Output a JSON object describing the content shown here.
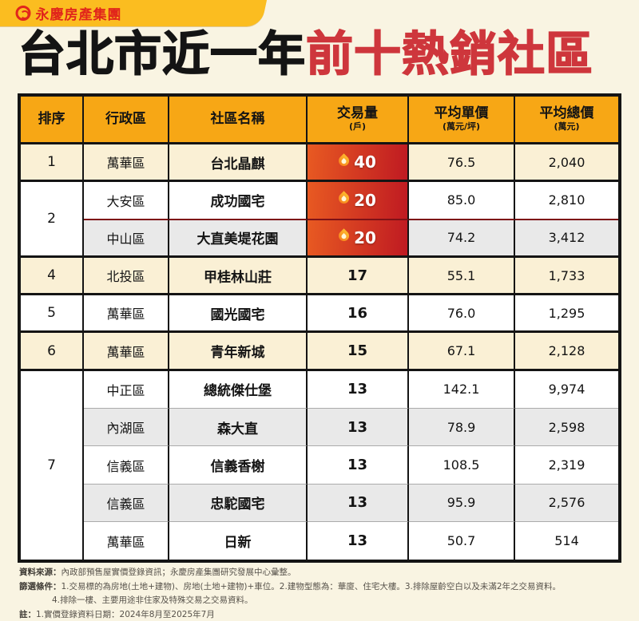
{
  "brand": {
    "logo_text": "永慶房產集團"
  },
  "title": {
    "black": "台北市近一年",
    "red": "前十熱銷社區"
  },
  "colors": {
    "background": "#F9F4E2",
    "tab_yellow": "#FBBD20",
    "logo_red": "#E1251B",
    "title_red": "#CE363C",
    "header_orange": "#F7A715",
    "row_cream": "#FAF0D5",
    "row_gray": "#E9E9E9",
    "hot_gradient_left": "#E85A22",
    "hot_gradient_right": "#BF1A22",
    "border_black": "#141414"
  },
  "table": {
    "headers": [
      {
        "label": "排序",
        "sub": ""
      },
      {
        "label": "行政區",
        "sub": ""
      },
      {
        "label": "社區名稱",
        "sub": ""
      },
      {
        "label": "交易量",
        "sub": "(戶)"
      },
      {
        "label": "平均單價",
        "sub": "(萬元/坪)"
      },
      {
        "label": "平均總價",
        "sub": "(萬元)"
      }
    ],
    "groups": [
      {
        "rank": "1",
        "rank_bg": "cream",
        "rows": [
          {
            "district": "萬華區",
            "community": "台北晶麒",
            "volume": "40",
            "hot": true,
            "unit_price": "76.5",
            "total_price": "2,040",
            "bg": "cream"
          }
        ]
      },
      {
        "rank": "2",
        "rank_bg": "white",
        "rows": [
          {
            "district": "大安區",
            "community": "成功國宅",
            "volume": "20",
            "hot": true,
            "unit_price": "85.0",
            "total_price": "2,810",
            "bg": "white"
          },
          {
            "district": "中山區",
            "community": "大直美堤花園",
            "volume": "20",
            "hot": true,
            "unit_price": "74.2",
            "total_price": "3,412",
            "bg": "gray"
          }
        ]
      },
      {
        "rank": "4",
        "rank_bg": "cream",
        "rows": [
          {
            "district": "北投區",
            "community": "甲桂林山莊",
            "volume": "17",
            "hot": false,
            "unit_price": "55.1",
            "total_price": "1,733",
            "bg": "cream"
          }
        ]
      },
      {
        "rank": "5",
        "rank_bg": "white",
        "rows": [
          {
            "district": "萬華區",
            "community": "國光國宅",
            "volume": "16",
            "hot": false,
            "unit_price": "76.0",
            "total_price": "1,295",
            "bg": "white"
          }
        ]
      },
      {
        "rank": "6",
        "rank_bg": "cream",
        "rows": [
          {
            "district": "萬華區",
            "community": "青年新城",
            "volume": "15",
            "hot": false,
            "unit_price": "67.1",
            "total_price": "2,128",
            "bg": "cream"
          }
        ]
      },
      {
        "rank": "7",
        "rank_bg": "white",
        "rows": [
          {
            "district": "中正區",
            "community": "總統傑仕堡",
            "volume": "13",
            "hot": false,
            "unit_price": "142.1",
            "total_price": "9,974",
            "bg": "white"
          },
          {
            "district": "內湖區",
            "community": "森大直",
            "volume": "13",
            "hot": false,
            "unit_price": "78.9",
            "total_price": "2,598",
            "bg": "gray"
          },
          {
            "district": "信義區",
            "community": "信義香榭",
            "volume": "13",
            "hot": false,
            "unit_price": "108.5",
            "total_price": "2,319",
            "bg": "white"
          },
          {
            "district": "信義區",
            "community": "忠駝國宅",
            "volume": "13",
            "hot": false,
            "unit_price": "95.9",
            "total_price": "2,576",
            "bg": "gray"
          },
          {
            "district": "萬華區",
            "community": "日新",
            "volume": "13",
            "hot": false,
            "unit_price": "50.7",
            "total_price": "514",
            "bg": "white"
          }
        ]
      }
    ]
  },
  "chart_data": {
    "type": "table",
    "title": "台北市近一年前十熱銷社區",
    "columns": [
      "排序",
      "行政區",
      "社區名稱",
      "交易量(戶)",
      "平均單價(萬元/坪)",
      "平均總價(萬元)"
    ],
    "rows": [
      [
        "1",
        "萬華區",
        "台北晶麒",
        40,
        76.5,
        2040
      ],
      [
        "2",
        "大安區",
        "成功國宅",
        20,
        85.0,
        2810
      ],
      [
        "2",
        "中山區",
        "大直美堤花園",
        20,
        74.2,
        3412
      ],
      [
        "4",
        "北投區",
        "甲桂林山莊",
        17,
        55.1,
        1733
      ],
      [
        "5",
        "萬華區",
        "國光國宅",
        16,
        76.0,
        1295
      ],
      [
        "6",
        "萬華區",
        "青年新城",
        15,
        67.1,
        2128
      ],
      [
        "7",
        "中正區",
        "總統傑仕堡",
        13,
        142.1,
        9974
      ],
      [
        "7",
        "內湖區",
        "森大直",
        13,
        78.9,
        2598
      ],
      [
        "7",
        "信義區",
        "信義香榭",
        13,
        108.5,
        2319
      ],
      [
        "7",
        "信義區",
        "忠駝國宅",
        13,
        95.9,
        2576
      ],
      [
        "7",
        "萬華區",
        "日新",
        13,
        50.7,
        514
      ]
    ]
  },
  "footer": {
    "source_label": "資料來源：",
    "source_text": "內政部預售屋實價登錄資訊；永慶房產集團研究發展中心彙整。",
    "filter_label": "篩選條件：",
    "filter_text": "1.交易標的為房地(土地+建物)、房地(土地+建物)+車位。2.建物型態為：華廈、住宅大樓。3.排除屋齡空白以及未滿2年之交易資料。",
    "filter_text2": "4.排除一樓、主要用途非住家及特殊交易之交易資料。",
    "note_label": "註：",
    "note_text": "1.實價登錄資料日期：2024年8月至2025年7月"
  }
}
